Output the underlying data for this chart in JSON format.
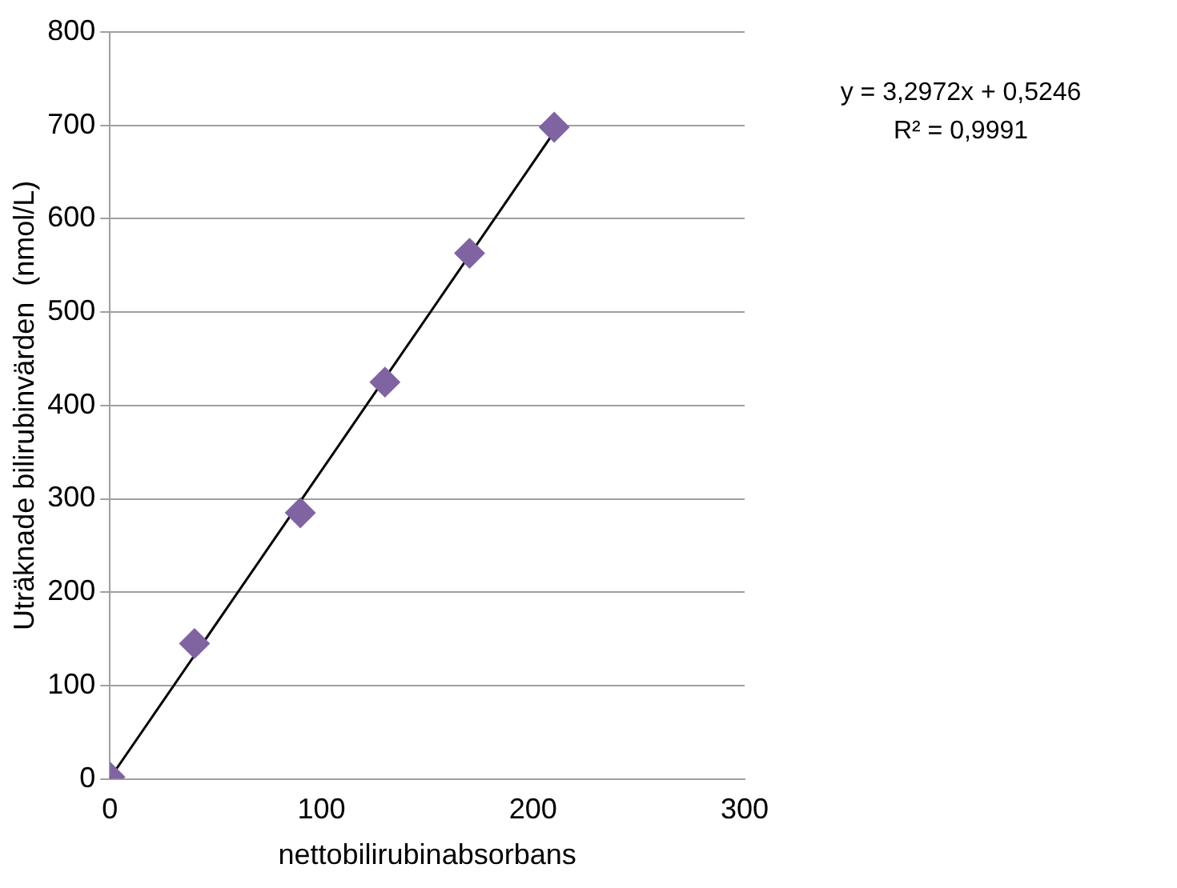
{
  "chart_data": {
    "type": "scatter",
    "xlabel": "nettobilirubinabsorbans",
    "ylabel": "Uträknade bilirubinvärden  (nmol/L)",
    "x": [
      0,
      40,
      90,
      130,
      170,
      210
    ],
    "series": [
      {
        "type": "scatter",
        "color": "#8064a2",
        "marker": "diamond",
        "values": [
          2,
          145,
          285,
          425,
          563,
          698
        ]
      },
      {
        "type": "line",
        "color": "#000000",
        "marker": "none",
        "x": [
          0,
          210
        ],
        "values": [
          0.5,
          693
        ]
      }
    ],
    "xlim": [
      0,
      300
    ],
    "xticks": [
      0,
      100,
      200,
      300
    ],
    "ylim": [
      0,
      800
    ],
    "yticks": [
      0,
      100,
      200,
      300,
      400,
      500,
      600,
      700,
      800
    ],
    "grid": "y",
    "annotations": [
      "y = 3,2972x + 0,5246",
      "R² = 0,9991"
    ]
  }
}
